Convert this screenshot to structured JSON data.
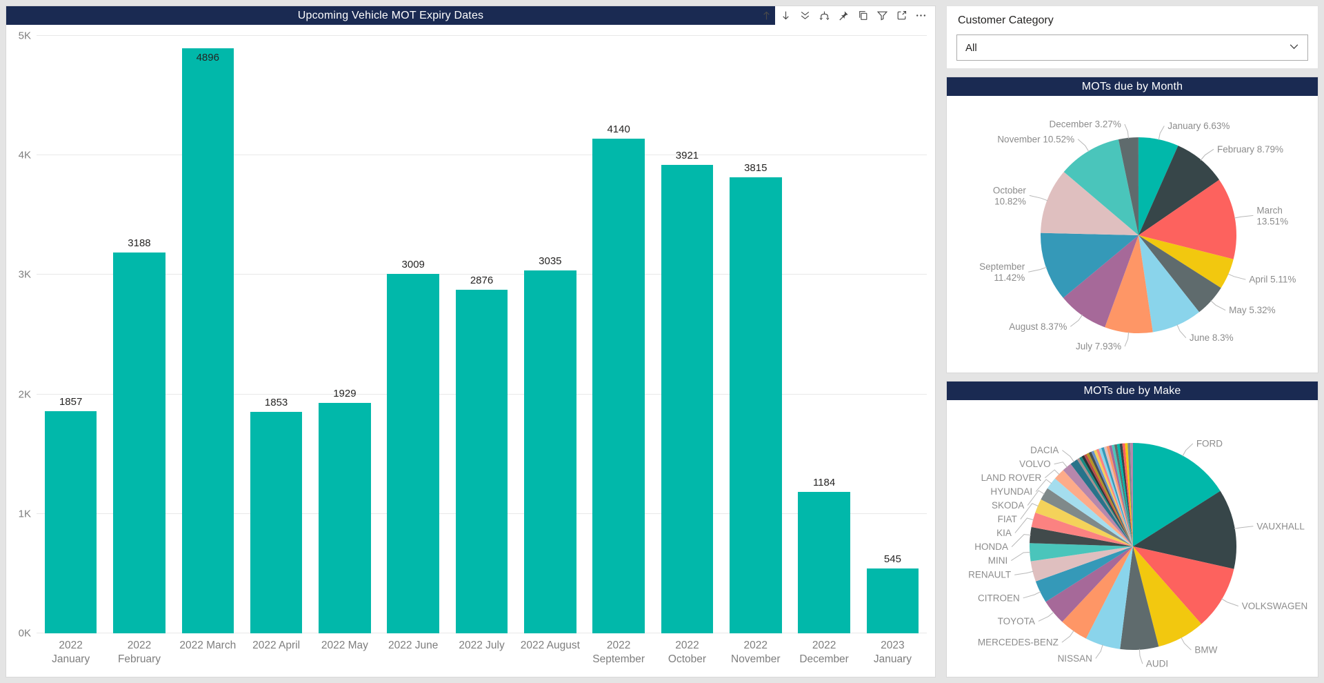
{
  "colors": {
    "navy_header": "#1A2A52",
    "teal_accent": "#01B8AA",
    "page_background": "#E4E4E4",
    "axis_text": "#7E7E7E",
    "data_label_text": "#252423",
    "pie_label_text": "#8C8C8C",
    "leader_line": "#B8B8B8"
  },
  "bar_panel": {
    "title": "Upcoming Vehicle MOT Expiry Dates",
    "toolbar_icons": [
      "arrow-up",
      "arrow-down",
      "double-arrow-down",
      "expand-hierarchy",
      "pin",
      "copy",
      "filter",
      "focus-mode",
      "more-options"
    ]
  },
  "slicer": {
    "label": "Customer Category",
    "value": "All"
  },
  "chart_data": [
    {
      "id": "mot-expiry-bar",
      "type": "bar",
      "title": "Upcoming Vehicle MOT Expiry Dates",
      "categories": [
        "2022 January",
        "2022 February",
        "2022 March",
        "2022 April",
        "2022 May",
        "2022 June",
        "2022 July",
        "2022 August",
        "2022 September",
        "2022 October",
        "2022 November",
        "2022 December",
        "2023 January"
      ],
      "values": [
        1857,
        3188,
        4896,
        1853,
        1929,
        3009,
        2876,
        3035,
        4140,
        3921,
        3815,
        1184,
        545
      ],
      "bar_color": "#01B8AA",
      "ylim": [
        0,
        5000
      ],
      "y_ticks": [
        "0K",
        "1K",
        "2K",
        "3K",
        "4K",
        "5K"
      ],
      "grid": true,
      "data_labels": true,
      "legend": "none"
    },
    {
      "id": "mots-by-month-pie",
      "type": "pie",
      "title": "MOTs due by Month",
      "slices": [
        {
          "name": "January",
          "pct": 6.63,
          "color": "#01B8AA",
          "label": "January 6.63%",
          "two_line": false
        },
        {
          "name": "February",
          "pct": 8.79,
          "color": "#374649",
          "label": "February 8.79%",
          "two_line": false
        },
        {
          "name": "March",
          "pct": 13.51,
          "color": "#FD625E",
          "label": "March 13.51%",
          "two_line": true,
          "lines": [
            "March",
            "13.51%"
          ]
        },
        {
          "name": "April",
          "pct": 5.11,
          "color": "#F2C80F",
          "label": "April 5.11%",
          "two_line": false
        },
        {
          "name": "May",
          "pct": 5.32,
          "color": "#5F6B6D",
          "label": "May 5.32%",
          "two_line": false
        },
        {
          "name": "June",
          "pct": 8.3,
          "color": "#8AD4EB",
          "label": "June 8.3%",
          "two_line": false
        },
        {
          "name": "July",
          "pct": 7.93,
          "color": "#FE9666",
          "label": "July 7.93%",
          "two_line": false
        },
        {
          "name": "August",
          "pct": 8.37,
          "color": "#A66999",
          "label": "August 8.37%",
          "two_line": false
        },
        {
          "name": "September",
          "pct": 11.42,
          "color": "#3599B8",
          "label": "September 11.42%",
          "two_line": true,
          "lines": [
            "September",
            "11.42%"
          ]
        },
        {
          "name": "October",
          "pct": 10.82,
          "color": "#DFBFBF",
          "label": "October 10.82%",
          "two_line": true,
          "lines": [
            "October",
            "10.82%"
          ]
        },
        {
          "name": "November",
          "pct": 10.52,
          "color": "#4AC5BB",
          "label": "November 10.52%",
          "two_line": false
        },
        {
          "name": "December",
          "pct": 3.27,
          "color": "#5F6B6D",
          "label": "December 3.27%",
          "two_line": false
        }
      ]
    },
    {
      "id": "mots-by-make-pie",
      "type": "pie",
      "title": "MOTs due by Make",
      "slices": [
        {
          "name": "FORD",
          "pct": 16.0,
          "color": "#01B8AA",
          "label": "FORD",
          "two_line": false
        },
        {
          "name": "VAUXHALL",
          "pct": 12.5,
          "color": "#374649",
          "label": "VAUXHALL",
          "two_line": false
        },
        {
          "name": "VOLKSWAGEN",
          "pct": 10.0,
          "color": "#FD625E",
          "label": "VOLKSWAGEN",
          "two_line": false
        },
        {
          "name": "BMW",
          "pct": 7.5,
          "color": "#F2C80F",
          "label": "BMW",
          "two_line": false
        },
        {
          "name": "AUDI",
          "pct": 6.0,
          "color": "#5F6B6D",
          "label": "AUDI",
          "two_line": false
        },
        {
          "name": "NISSAN",
          "pct": 5.5,
          "color": "#8AD4EB",
          "label": "NISSAN",
          "two_line": false
        },
        {
          "name": "MERCEDES-BENZ",
          "pct": 4.5,
          "color": "#FE9666",
          "label": "MERCEDES-BENZ",
          "two_line": false
        },
        {
          "name": "TOYOTA",
          "pct": 4.0,
          "color": "#A66999",
          "label": "TOYOTA",
          "two_line": false
        },
        {
          "name": "CITROEN",
          "pct": 3.5,
          "color": "#3599B8",
          "label": "CITROEN",
          "two_line": false
        },
        {
          "name": "RENAULT",
          "pct": 3.2,
          "color": "#DFBFBF",
          "label": "RENAULT",
          "two_line": false
        },
        {
          "name": "MINI",
          "pct": 2.8,
          "color": "#4AC5BB",
          "label": "MINI",
          "two_line": false
        },
        {
          "name": "HONDA",
          "pct": 2.5,
          "color": "#414A4B",
          "label": "HONDA",
          "two_line": false
        },
        {
          "name": "KIA",
          "pct": 2.3,
          "color": "#FB8281",
          "label": "KIA",
          "two_line": false
        },
        {
          "name": "FIAT",
          "pct": 2.2,
          "color": "#F4D25A",
          "label": "FIAT",
          "two_line": false
        },
        {
          "name": "SKODA",
          "pct": 2.0,
          "color": "#7F898A",
          "label": "SKODA",
          "two_line": false
        },
        {
          "name": "HYUNDAI",
          "pct": 1.9,
          "color": "#A4DDEE",
          "label": "HYUNDAI",
          "two_line": false
        },
        {
          "name": "LAND ROVER",
          "pct": 1.8,
          "color": "#FDAB89",
          "label": "LAND ROVER",
          "two_line": false
        },
        {
          "name": "VOLVO",
          "pct": 1.5,
          "color": "#B687AC",
          "label": "VOLVO",
          "two_line": false
        },
        {
          "name": "DACIA",
          "pct": 1.2,
          "color": "#28738A",
          "label": "DACIA",
          "two_line": false
        }
      ],
      "other_slivers": {
        "total_pct": 9.1,
        "count": 22,
        "colors": [
          "#A78F8F",
          "#168980",
          "#293537",
          "#BB4A4A",
          "#B59525",
          "#475052",
          "#6B91C9",
          "#F4D25A",
          "#FB8281",
          "#8AD4EB",
          "#3599B8",
          "#DFBFBF",
          "#FE9666",
          "#A66999",
          "#4AC5BB",
          "#5F6B6D",
          "#01B8AA",
          "#374649",
          "#FD625E",
          "#F2C80F",
          "#7F898A",
          "#B687AC"
        ]
      }
    }
  ]
}
